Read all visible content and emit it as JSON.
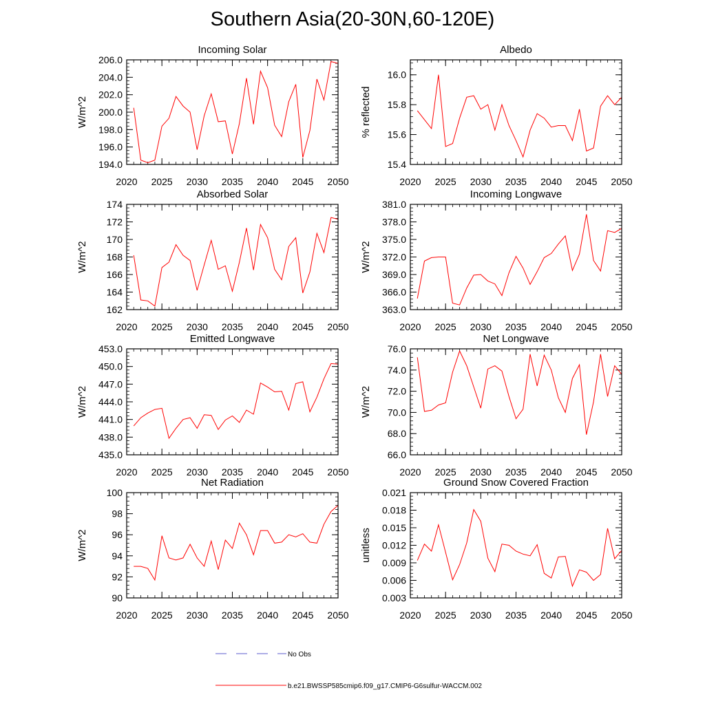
{
  "title": "Southern Asia(20-30N,60-120E)",
  "chart_data": [
    {
      "type": "line",
      "title": "Incoming Solar",
      "ylabel": "W/m^2",
      "xlim": [
        2020,
        2050
      ],
      "ylim": [
        194.0,
        206.0
      ],
      "xticks": [
        2020,
        2025,
        2030,
        2035,
        2040,
        2045,
        2050
      ],
      "yticks": [
        "194.0",
        "196.0",
        "198.0",
        "200.0",
        "202.0",
        "204.0",
        "206.0"
      ],
      "x": [
        2021,
        2022,
        2023,
        2024,
        2025,
        2026,
        2027,
        2028,
        2029,
        2030,
        2031,
        2032,
        2033,
        2034,
        2035,
        2036,
        2037,
        2038,
        2039,
        2040,
        2041,
        2042,
        2043,
        2044,
        2045,
        2046,
        2047,
        2048,
        2049,
        2050
      ],
      "series": [
        {
          "name": "b.e21.BWSSP585cmip6.f09_g17.CMIP6-G6sulfur-WACCM.002",
          "color": "#ff0000",
          "values": [
            200.5,
            194.5,
            194.2,
            194.5,
            198.4,
            199.3,
            201.8,
            200.7,
            200.0,
            195.7,
            199.6,
            202.1,
            198.9,
            199.0,
            195.2,
            198.7,
            203.9,
            198.6,
            204.7,
            202.8,
            198.5,
            197.2,
            201.2,
            203.2,
            194.8,
            197.9,
            203.8,
            201.4,
            205.8,
            205.6
          ]
        }
      ]
    },
    {
      "type": "line",
      "title": "Albedo",
      "ylabel": "% reflected",
      "xlim": [
        2020,
        2050
      ],
      "ylim": [
        15.4,
        16.1
      ],
      "xticks": [
        2020,
        2025,
        2030,
        2035,
        2040,
        2045,
        2050
      ],
      "yticks": [
        "15.4",
        "15.6",
        "15.8",
        "16.0"
      ],
      "x": [
        2021,
        2022,
        2023,
        2024,
        2025,
        2026,
        2027,
        2028,
        2029,
        2030,
        2031,
        2032,
        2033,
        2034,
        2035,
        2036,
        2037,
        2038,
        2039,
        2040,
        2041,
        2042,
        2043,
        2044,
        2045,
        2046,
        2047,
        2048,
        2049,
        2050
      ],
      "series": [
        {
          "name": "b.e21.BWSSP585cmip6.f09_g17.CMIP6-G6sulfur-WACCM.002",
          "color": "#ff0000",
          "values": [
            15.76,
            15.7,
            15.64,
            16.0,
            15.52,
            15.54,
            15.71,
            15.85,
            15.86,
            15.77,
            15.8,
            15.63,
            15.8,
            15.66,
            15.56,
            15.45,
            15.63,
            15.74,
            15.71,
            15.65,
            15.66,
            15.66,
            15.56,
            15.77,
            15.49,
            15.51,
            15.79,
            15.86,
            15.8,
            15.85
          ]
        }
      ]
    },
    {
      "type": "line",
      "title": "Absorbed Solar",
      "ylabel": "W/m^2",
      "xlim": [
        2020,
        2050
      ],
      "ylim": [
        162,
        174
      ],
      "xticks": [
        2020,
        2025,
        2030,
        2035,
        2040,
        2045,
        2050
      ],
      "yticks": [
        "162",
        "164",
        "166",
        "168",
        "170",
        "172",
        "174"
      ],
      "x": [
        2021,
        2022,
        2023,
        2024,
        2025,
        2026,
        2027,
        2028,
        2029,
        2030,
        2031,
        2032,
        2033,
        2034,
        2035,
        2036,
        2037,
        2038,
        2039,
        2040,
        2041,
        2042,
        2043,
        2044,
        2045,
        2046,
        2047,
        2048,
        2049,
        2050
      ],
      "series": [
        {
          "name": "b.e21.BWSSP585cmip6.f09_g17.CMIP6-G6sulfur-WACCM.002",
          "color": "#ff0000",
          "values": [
            168.2,
            163.1,
            163.0,
            162.4,
            166.8,
            167.4,
            169.4,
            168.2,
            167.6,
            164.2,
            167.1,
            169.9,
            166.6,
            167.0,
            164.1,
            167.4,
            171.3,
            166.5,
            171.7,
            170.2,
            166.6,
            165.4,
            169.2,
            170.2,
            163.9,
            166.3,
            170.7,
            168.5,
            172.5,
            172.3
          ]
        }
      ]
    },
    {
      "type": "line",
      "title": "Incoming Longwave",
      "ylabel": "W/m^2",
      "xlim": [
        2020,
        2050
      ],
      "ylim": [
        363.0,
        381.0
      ],
      "xticks": [
        2020,
        2025,
        2030,
        2035,
        2040,
        2045,
        2050
      ],
      "yticks": [
        "363.0",
        "366.0",
        "369.0",
        "372.0",
        "375.0",
        "378.0",
        "381.0"
      ],
      "x": [
        2021,
        2022,
        2023,
        2024,
        2025,
        2026,
        2027,
        2028,
        2029,
        2030,
        2031,
        2032,
        2033,
        2034,
        2035,
        2036,
        2037,
        2038,
        2039,
        2040,
        2041,
        2042,
        2043,
        2044,
        2045,
        2046,
        2047,
        2048,
        2049,
        2050
      ],
      "series": [
        {
          "name": "b.e21.BWSSP585cmip6.f09_g17.CMIP6-G6sulfur-WACCM.002",
          "color": "#ff0000",
          "values": [
            364.9,
            371.3,
            371.9,
            372.0,
            372.0,
            364.1,
            363.8,
            366.7,
            368.9,
            369.0,
            367.9,
            367.4,
            365.4,
            369.3,
            372.1,
            370.1,
            367.3,
            369.5,
            371.9,
            372.6,
            374.2,
            375.6,
            369.7,
            372.5,
            379.3,
            371.4,
            369.6,
            376.5,
            376.2,
            376.9
          ]
        }
      ]
    },
    {
      "type": "line",
      "title": "Emitted Longwave",
      "ylabel": "W/m^2",
      "xlim": [
        2020,
        2050
      ],
      "ylim": [
        435.0,
        453.0
      ],
      "xticks": [
        2020,
        2025,
        2030,
        2035,
        2040,
        2045,
        2050
      ],
      "yticks": [
        "435.0",
        "438.0",
        "441.0",
        "444.0",
        "447.0",
        "450.0",
        "453.0"
      ],
      "x": [
        2021,
        2022,
        2023,
        2024,
        2025,
        2026,
        2027,
        2028,
        2029,
        2030,
        2031,
        2032,
        2033,
        2034,
        2035,
        2036,
        2037,
        2038,
        2039,
        2040,
        2041,
        2042,
        2043,
        2044,
        2045,
        2046,
        2047,
        2048,
        2049,
        2050
      ],
      "series": [
        {
          "name": "b.e21.BWSSP585cmip6.f09_g17.CMIP6-G6sulfur-WACCM.002",
          "color": "#ff0000",
          "values": [
            439.9,
            441.3,
            442.1,
            442.7,
            442.9,
            437.8,
            439.5,
            441.0,
            441.3,
            439.5,
            441.8,
            441.7,
            439.3,
            440.9,
            441.6,
            440.5,
            442.6,
            441.9,
            447.2,
            446.5,
            445.7,
            445.8,
            442.6,
            447.1,
            447.4,
            442.3,
            444.8,
            447.9,
            450.5,
            450.4
          ]
        }
      ]
    },
    {
      "type": "line",
      "title": "Net Longwave",
      "ylabel": "W/m^2",
      "xlim": [
        2020,
        2050
      ],
      "ylim": [
        66.0,
        76.0
      ],
      "xticks": [
        2020,
        2025,
        2030,
        2035,
        2040,
        2045,
        2050
      ],
      "yticks": [
        "66.0",
        "68.0",
        "70.0",
        "72.0",
        "74.0",
        "76.0"
      ],
      "x": [
        2021,
        2022,
        2023,
        2024,
        2025,
        2026,
        2027,
        2028,
        2029,
        2030,
        2031,
        2032,
        2033,
        2034,
        2035,
        2036,
        2037,
        2038,
        2039,
        2040,
        2041,
        2042,
        2043,
        2044,
        2045,
        2046,
        2047,
        2048,
        2049,
        2050
      ],
      "series": [
        {
          "name": "b.e21.BWSSP585cmip6.f09_g17.CMIP6-G6sulfur-WACCM.002",
          "color": "#ff0000",
          "values": [
            75.2,
            70.1,
            70.2,
            70.7,
            70.9,
            73.8,
            75.8,
            74.4,
            72.4,
            70.4,
            74.1,
            74.4,
            73.9,
            71.5,
            69.4,
            70.3,
            75.5,
            72.5,
            75.4,
            74.0,
            71.4,
            70.0,
            73.2,
            74.5,
            67.9,
            71.0,
            75.5,
            71.5,
            74.4,
            73.6
          ]
        }
      ]
    },
    {
      "type": "line",
      "title": "Net Radiation",
      "ylabel": "W/m^2",
      "xlim": [
        2020,
        2050
      ],
      "ylim": [
        90,
        100
      ],
      "xticks": [
        2020,
        2025,
        2030,
        2035,
        2040,
        2045,
        2050
      ],
      "yticks": [
        "90",
        "92",
        "94",
        "96",
        "98",
        "100"
      ],
      "x": [
        2021,
        2022,
        2023,
        2024,
        2025,
        2026,
        2027,
        2028,
        2029,
        2030,
        2031,
        2032,
        2033,
        2034,
        2035,
        2036,
        2037,
        2038,
        2039,
        2040,
        2041,
        2042,
        2043,
        2044,
        2045,
        2046,
        2047,
        2048,
        2049,
        2050
      ],
      "series": [
        {
          "name": "b.e21.BWSSP585cmip6.f09_g17.CMIP6-G6sulfur-WACCM.002",
          "color": "#ff0000",
          "values": [
            93.0,
            93.0,
            92.8,
            91.7,
            95.9,
            93.8,
            93.6,
            93.8,
            95.1,
            93.8,
            93.0,
            95.4,
            92.7,
            95.5,
            94.7,
            97.1,
            96.0,
            94.1,
            96.4,
            96.4,
            95.2,
            95.3,
            96.0,
            95.8,
            96.1,
            95.3,
            95.2,
            97.0,
            98.2,
            98.8
          ]
        }
      ]
    },
    {
      "type": "line",
      "title": "Ground Snow Covered Fraction",
      "ylabel": "unitless",
      "xlim": [
        2020,
        2050
      ],
      "ylim": [
        0.003,
        0.021
      ],
      "xticks": [
        2020,
        2025,
        2030,
        2035,
        2040,
        2045,
        2050
      ],
      "yticks": [
        "0.003",
        "0.006",
        "0.009",
        "0.012",
        "0.015",
        "0.018",
        "0.021"
      ],
      "x": [
        2021,
        2022,
        2023,
        2024,
        2025,
        2026,
        2027,
        2028,
        2029,
        2030,
        2031,
        2032,
        2033,
        2034,
        2035,
        2036,
        2037,
        2038,
        2039,
        2040,
        2041,
        2042,
        2043,
        2044,
        2045,
        2046,
        2047,
        2048,
        2049,
        2050
      ],
      "series": [
        {
          "name": "b.e21.BWSSP585cmip6.f09_g17.CMIP6-G6sulfur-WACCM.002",
          "color": "#ff0000",
          "values": [
            0.0094,
            0.0122,
            0.011,
            0.0155,
            0.0108,
            0.0061,
            0.0087,
            0.0124,
            0.0181,
            0.0161,
            0.0098,
            0.0075,
            0.0122,
            0.012,
            0.011,
            0.0105,
            0.0102,
            0.0121,
            0.0072,
            0.0064,
            0.01,
            0.0101,
            0.005,
            0.0078,
            0.0074,
            0.006,
            0.007,
            0.0149,
            0.0097,
            0.0111
          ]
        }
      ]
    }
  ],
  "legend": [
    {
      "label": "No Obs",
      "color": "#5a5acd",
      "style": "dashed"
    },
    {
      "label": "b.e21.BWSSP585cmip6.f09_g17.CMIP6-G6sulfur-WACCM.002",
      "color": "#ff0000",
      "style": "solid"
    }
  ]
}
